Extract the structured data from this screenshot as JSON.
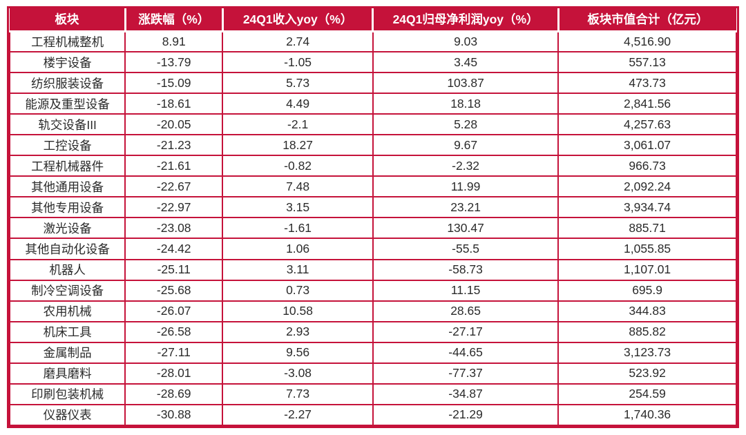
{
  "colors": {
    "accent": "#C5123A",
    "header_text": "#FFFFFF",
    "cell_text": "#2B2B2B",
    "page_bg": "#FFFFFF"
  },
  "chart_data": {
    "type": "table",
    "title": "",
    "columns": [
      "板块",
      "涨跌幅（%）",
      "24Q1收入yoy（%）",
      "24Q1归母净利润yoy（%）",
      "板块市值合计（亿元）"
    ],
    "rows": [
      [
        "工程机械整机",
        "8.91",
        "2.74",
        "9.03",
        "4,516.90"
      ],
      [
        "楼宇设备",
        "-13.79",
        "-1.05",
        "3.45",
        "557.13"
      ],
      [
        "纺织服装设备",
        "-15.09",
        "5.73",
        "103.87",
        "473.73"
      ],
      [
        "能源及重型设备",
        "-18.61",
        "4.49",
        "18.18",
        "2,841.56"
      ],
      [
        "轨交设备III",
        "-20.05",
        "-2.1",
        "5.28",
        "4,257.63"
      ],
      [
        "工控设备",
        "-21.23",
        "18.27",
        "9.67",
        "3,061.07"
      ],
      [
        "工程机械器件",
        "-21.61",
        "-0.82",
        "-2.32",
        "966.73"
      ],
      [
        "其他通用设备",
        "-22.67",
        "7.48",
        "11.99",
        "2,092.24"
      ],
      [
        "其他专用设备",
        "-22.97",
        "3.15",
        "23.21",
        "3,934.74"
      ],
      [
        "激光设备",
        "-23.08",
        "-1.61",
        "130.47",
        "885.71"
      ],
      [
        "其他自动化设备",
        "-24.42",
        "1.06",
        "-55.5",
        "1,055.85"
      ],
      [
        "机器人",
        "-25.11",
        "3.11",
        "-58.73",
        "1,107.01"
      ],
      [
        "制冷空调设备",
        "-25.68",
        "0.73",
        "11.15",
        "695.9"
      ],
      [
        "农用机械",
        "-26.07",
        "10.58",
        "28.65",
        "344.83"
      ],
      [
        "机床工具",
        "-26.58",
        "2.93",
        "-27.17",
        "885.82"
      ],
      [
        "金属制品",
        "-27.11",
        "9.56",
        "-44.65",
        "3,123.73"
      ],
      [
        "磨具磨料",
        "-28.01",
        "-3.08",
        "-77.37",
        "523.92"
      ],
      [
        "印刷包装机械",
        "-28.69",
        "7.73",
        "-34.87",
        "254.59"
      ],
      [
        "仪器仪表",
        "-30.88",
        "-2.27",
        "-21.29",
        "1,740.36"
      ]
    ]
  }
}
